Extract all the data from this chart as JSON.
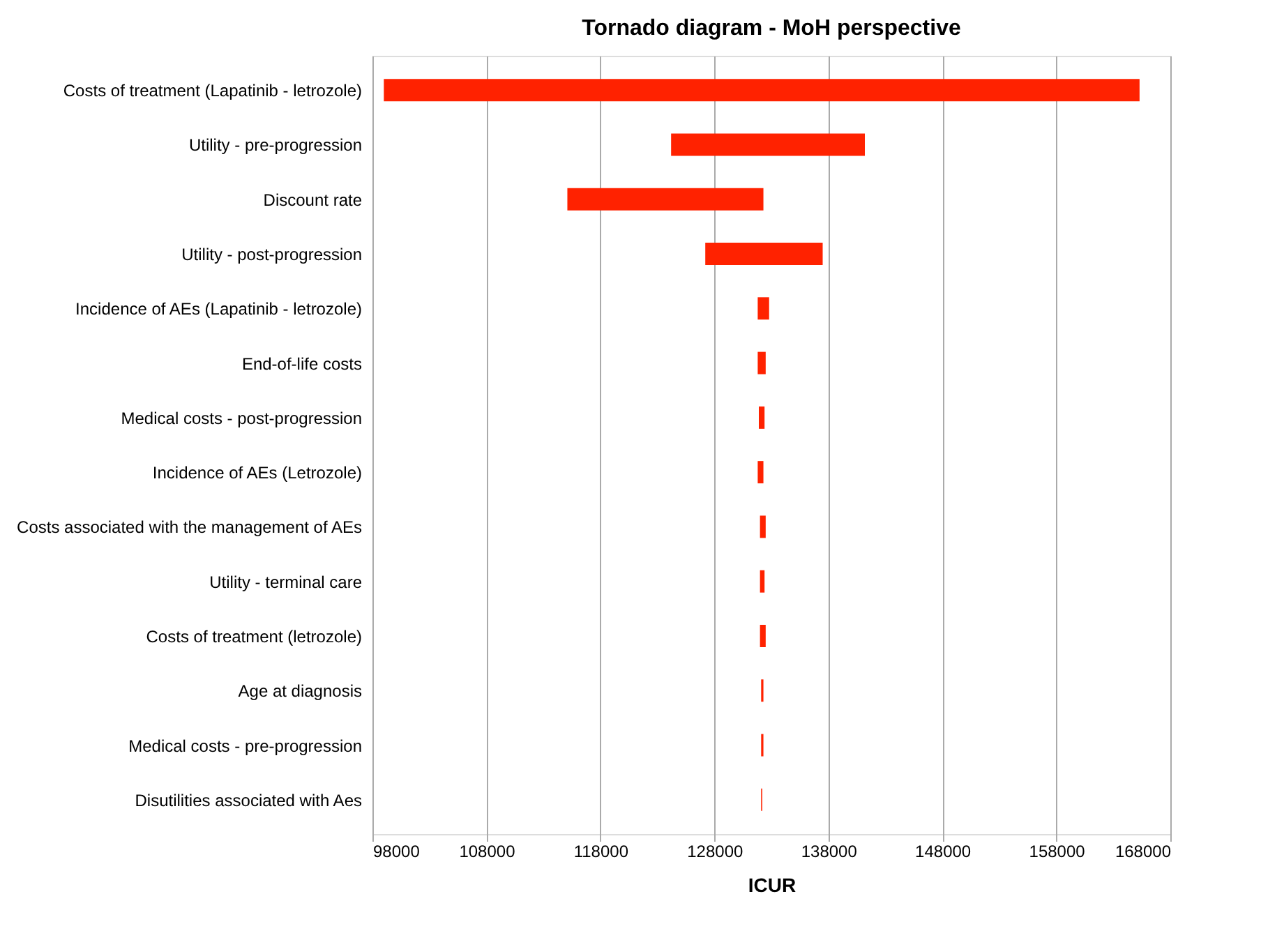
{
  "chart_data": {
    "type": "bar",
    "orientation": "horizontal",
    "title": "Tornado diagram - MoH perspective",
    "xlabel": "ICUR",
    "categories": [
      "Costs of treatment (Lapatinib - letrozole)",
      "Utility - pre-progression",
      "Discount rate",
      "Utility - post-progression",
      "Incidence of AEs (Lapatinib - letrozole)",
      "End-of-life costs",
      "Medical costs - post-progression",
      "Incidence of AEs (Letrozole)",
      "Costs associated with the management of AEs",
      "Utility - terminal care",
      "Costs of treatment (letrozole)",
      "Age at diagnosis",
      "Medical costs - pre-progression",
      "Disutilities associated with Aes"
    ],
    "base": [
      99000,
      124200,
      115100,
      127200,
      131800,
      131800,
      131900,
      131800,
      132000,
      132000,
      132000,
      132100,
      132100,
      132100
    ],
    "values": [
      66300,
      17000,
      17200,
      10300,
      1000,
      700,
      500,
      500,
      500,
      400,
      500,
      200,
      200,
      100
    ],
    "color": "#ff2200",
    "xlim": [
      98000,
      168000
    ],
    "xticks": [
      98000,
      108000,
      118000,
      128000,
      138000,
      148000,
      158000,
      168000
    ],
    "grid": "x"
  }
}
